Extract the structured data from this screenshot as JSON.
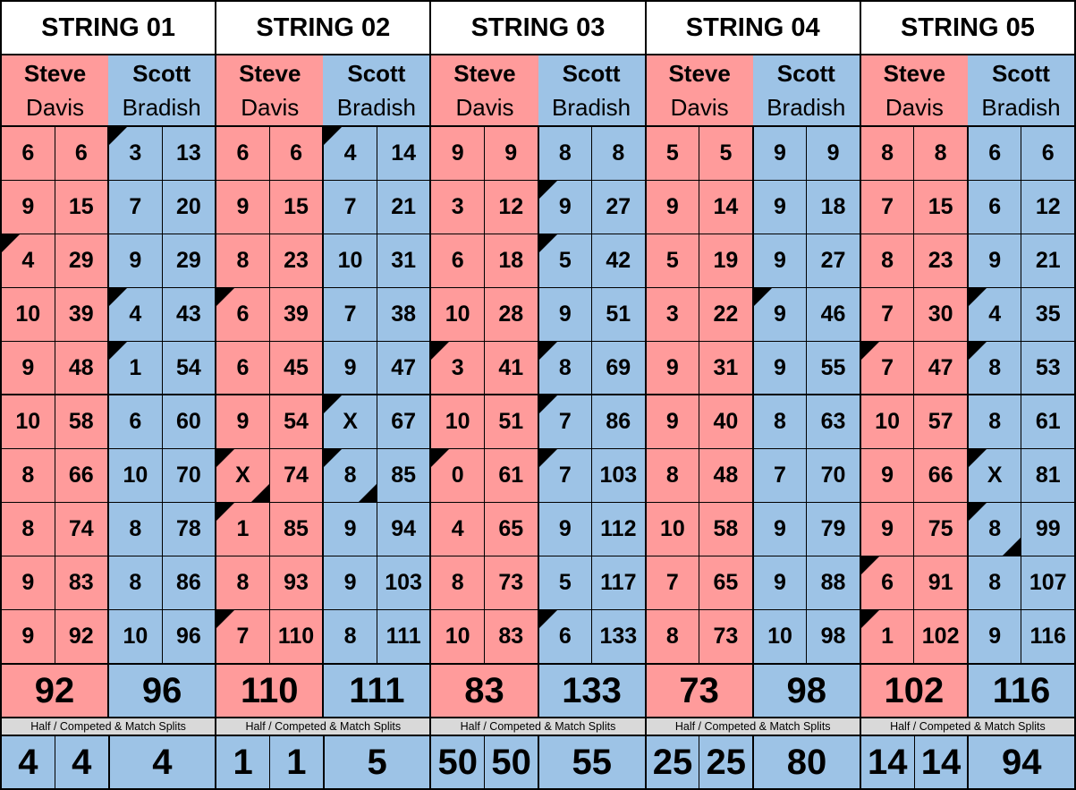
{
  "colors": {
    "player1": "#ff9b9b",
    "player2": "#9dc3e6",
    "label_bg": "#d9d9d9"
  },
  "players": [
    {
      "first": "Steve",
      "last": "Davis"
    },
    {
      "first": "Scott",
      "last": "Bradish"
    }
  ],
  "splits_label": "Half / Competed & Match Splits",
  "strings": [
    {
      "title": "STRING 01",
      "p1": [
        [
          "6",
          "6",
          ""
        ],
        [
          "9",
          "15",
          ""
        ],
        [
          "4",
          "29",
          "tl"
        ],
        [
          "10",
          "39",
          ""
        ],
        [
          "9",
          "48",
          ""
        ],
        [
          "10",
          "58",
          ""
        ],
        [
          "8",
          "66",
          ""
        ],
        [
          "8",
          "74",
          ""
        ],
        [
          "9",
          "83",
          ""
        ],
        [
          "9",
          "92",
          ""
        ]
      ],
      "p2": [
        [
          "3",
          "13",
          "tl"
        ],
        [
          "7",
          "20",
          ""
        ],
        [
          "9",
          "29",
          ""
        ],
        [
          "4",
          "43",
          "tl"
        ],
        [
          "1",
          "54",
          "tl"
        ],
        [
          "6",
          "60",
          ""
        ],
        [
          "10",
          "70",
          ""
        ],
        [
          "8",
          "78",
          ""
        ],
        [
          "8",
          "86",
          ""
        ],
        [
          "10",
          "96",
          ""
        ]
      ],
      "total1": "92",
      "total2": "96",
      "splits": [
        "4",
        "4",
        "4"
      ]
    },
    {
      "title": "STRING 02",
      "p1": [
        [
          "6",
          "6",
          ""
        ],
        [
          "9",
          "15",
          ""
        ],
        [
          "8",
          "23",
          ""
        ],
        [
          "6",
          "39",
          "tl"
        ],
        [
          "6",
          "45",
          ""
        ],
        [
          "9",
          "54",
          ""
        ],
        [
          "X",
          "74",
          "tl br"
        ],
        [
          "1",
          "85",
          "tl"
        ],
        [
          "8",
          "93",
          ""
        ],
        [
          "7",
          "110",
          "tl"
        ]
      ],
      "p2": [
        [
          "4",
          "14",
          "tl"
        ],
        [
          "7",
          "21",
          ""
        ],
        [
          "10",
          "31",
          ""
        ],
        [
          "7",
          "38",
          ""
        ],
        [
          "9",
          "47",
          ""
        ],
        [
          "X",
          "67",
          "tl"
        ],
        [
          "8",
          "85",
          "tl br"
        ],
        [
          "9",
          "94",
          ""
        ],
        [
          "9",
          "103",
          ""
        ],
        [
          "8",
          "111",
          ""
        ]
      ],
      "total1": "110",
      "total2": "111",
      "splits": [
        "1",
        "1",
        "5"
      ]
    },
    {
      "title": "STRING 03",
      "p1": [
        [
          "9",
          "9",
          ""
        ],
        [
          "3",
          "12",
          ""
        ],
        [
          "6",
          "18",
          ""
        ],
        [
          "10",
          "28",
          ""
        ],
        [
          "3",
          "41",
          "tl"
        ],
        [
          "10",
          "51",
          ""
        ],
        [
          "0",
          "61",
          "tl"
        ],
        [
          "4",
          "65",
          ""
        ],
        [
          "8",
          "73",
          ""
        ],
        [
          "10",
          "83",
          ""
        ]
      ],
      "p2": [
        [
          "8",
          "8",
          ""
        ],
        [
          "9",
          "27",
          "tl"
        ],
        [
          "5",
          "42",
          "tl"
        ],
        [
          "9",
          "51",
          ""
        ],
        [
          "8",
          "69",
          "tl"
        ],
        [
          "7",
          "86",
          "tl"
        ],
        [
          "7",
          "103",
          "tl"
        ],
        [
          "9",
          "112",
          ""
        ],
        [
          "5",
          "117",
          ""
        ],
        [
          "6",
          "133",
          "tl"
        ]
      ],
      "total1": "83",
      "total2": "133",
      "splits": [
        "50",
        "50",
        "55"
      ]
    },
    {
      "title": "STRING 04",
      "p1": [
        [
          "5",
          "5",
          ""
        ],
        [
          "9",
          "14",
          ""
        ],
        [
          "5",
          "19",
          ""
        ],
        [
          "3",
          "22",
          ""
        ],
        [
          "9",
          "31",
          ""
        ],
        [
          "9",
          "40",
          ""
        ],
        [
          "8",
          "48",
          ""
        ],
        [
          "10",
          "58",
          ""
        ],
        [
          "7",
          "65",
          ""
        ],
        [
          "8",
          "73",
          ""
        ]
      ],
      "p2": [
        [
          "9",
          "9",
          ""
        ],
        [
          "9",
          "18",
          ""
        ],
        [
          "9",
          "27",
          ""
        ],
        [
          "9",
          "46",
          "tl"
        ],
        [
          "9",
          "55",
          ""
        ],
        [
          "8",
          "63",
          ""
        ],
        [
          "7",
          "70",
          ""
        ],
        [
          "9",
          "79",
          ""
        ],
        [
          "9",
          "88",
          ""
        ],
        [
          "10",
          "98",
          ""
        ]
      ],
      "total1": "73",
      "total2": "98",
      "splits": [
        "25",
        "25",
        "80"
      ]
    },
    {
      "title": "STRING 05",
      "p1": [
        [
          "8",
          "8",
          ""
        ],
        [
          "7",
          "15",
          ""
        ],
        [
          "8",
          "23",
          ""
        ],
        [
          "7",
          "30",
          ""
        ],
        [
          "7",
          "47",
          "tl"
        ],
        [
          "10",
          "57",
          ""
        ],
        [
          "9",
          "66",
          ""
        ],
        [
          "9",
          "75",
          ""
        ],
        [
          "6",
          "91",
          "tl"
        ],
        [
          "1",
          "102",
          "tl"
        ]
      ],
      "p2": [
        [
          "6",
          "6",
          ""
        ],
        [
          "6",
          "12",
          ""
        ],
        [
          "9",
          "21",
          ""
        ],
        [
          "4",
          "35",
          "tl"
        ],
        [
          "8",
          "53",
          "tl"
        ],
        [
          "8",
          "61",
          ""
        ],
        [
          "X",
          "81",
          "tl"
        ],
        [
          "8",
          "99",
          "tl br"
        ],
        [
          "8",
          "107",
          ""
        ],
        [
          "9",
          "116",
          ""
        ]
      ],
      "total1": "102",
      "total2": "116",
      "splits": [
        "14",
        "14",
        "94"
      ]
    }
  ]
}
